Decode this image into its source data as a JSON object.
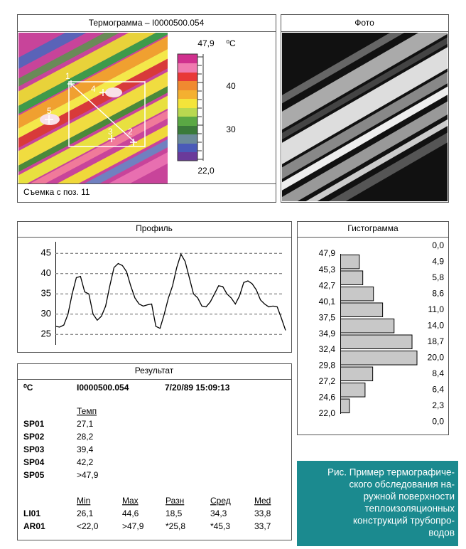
{
  "thermogram": {
    "title": "Термограмма – I0000500.054",
    "scale_labels": [
      "47,9",
      "⁰C",
      "40",
      "30",
      "22,0"
    ],
    "markers": [
      "1",
      "4",
      "5",
      "3",
      "2"
    ],
    "caption": "Съемка с поз. 11"
  },
  "photo": {
    "title": "Фото"
  },
  "chart_data": [
    {
      "type": "line",
      "title": "Профиль",
      "color": "#000000",
      "values": [
        27,
        26.8,
        27.3,
        30,
        35,
        39,
        39.3,
        35.5,
        35,
        30,
        28.5,
        29.5,
        32,
        37,
        41.5,
        42.5,
        42,
        40.5,
        37,
        34,
        32.5,
        32,
        32.3,
        32.5,
        27,
        26.5,
        30,
        34,
        37,
        41.5,
        44.8,
        43,
        39,
        35,
        34,
        32,
        31.8,
        33,
        35,
        37,
        36.8,
        35,
        34,
        32.5,
        34.5,
        37.8,
        38.2,
        37.5,
        36,
        33.5,
        32.5,
        31.8,
        32,
        31.8,
        29,
        26
      ],
      "ylim": [
        22.5,
        47.5
      ],
      "yticks": [
        25,
        30,
        35,
        40,
        45
      ],
      "grid": true
    },
    {
      "type": "hbar",
      "title": "Гистограмма",
      "color": "#c8c8c8",
      "values": [
        0,
        4.9,
        5.8,
        8.6,
        11,
        14,
        18.7,
        20,
        8.4,
        6.4,
        2.3,
        0
      ],
      "value_labels": [
        "0,0",
        "4,9",
        "5,8",
        "8,6",
        "11,0",
        "14,0",
        "18,7",
        "20,0",
        "8,4",
        "6,4",
        "2,3",
        "0,0"
      ],
      "xlim": [
        0,
        20
      ],
      "ylim": [
        19.4,
        50.5
      ],
      "yticks": [
        {
          "value": 47.9,
          "label": "47,9"
        },
        {
          "value": 45.3,
          "label": "45,3"
        },
        {
          "value": 42.7,
          "label": "42,7"
        },
        {
          "value": 40.1,
          "label": "40,1"
        },
        {
          "value": 37.5,
          "label": "37,5"
        },
        {
          "value": 34.9,
          "label": "34,9"
        },
        {
          "value": 32.4,
          "label": "32,4"
        },
        {
          "value": 29.8,
          "label": "29,8"
        },
        {
          "value": 27.2,
          "label": "27,2"
        },
        {
          "value": 24.6,
          "label": "24,6"
        },
        {
          "value": 22.0,
          "label": "22,0"
        }
      ]
    }
  ],
  "result": {
    "title": "Результат",
    "unit": "⁰C",
    "file": "I0000500.054",
    "datetime": "7/20/89 15:09:13",
    "spot_header": "Темп",
    "spots": [
      [
        "SP01",
        "27,1"
      ],
      [
        "SP02",
        "28,2"
      ],
      [
        "SP03",
        "39,4"
      ],
      [
        "SP04",
        "42,2"
      ],
      [
        "SP05",
        ">47,9"
      ]
    ],
    "area_header": [
      "Min",
      "Max",
      "Разн",
      "Сред",
      "Med"
    ],
    "areas": [
      [
        "LI01",
        "26,1",
        "44,6",
        "18,5",
        "34,3",
        "33,8"
      ],
      [
        "AR01",
        "<22,0",
        ">47,9",
        "*25,8",
        "*45,3",
        "33,7"
      ]
    ]
  },
  "caption": [
    "Рис. Пример термографиче-",
    "ского обследования на-",
    "ружной поверхности",
    "теплоизоляционных",
    "конструкций трубопро-",
    "водов"
  ]
}
